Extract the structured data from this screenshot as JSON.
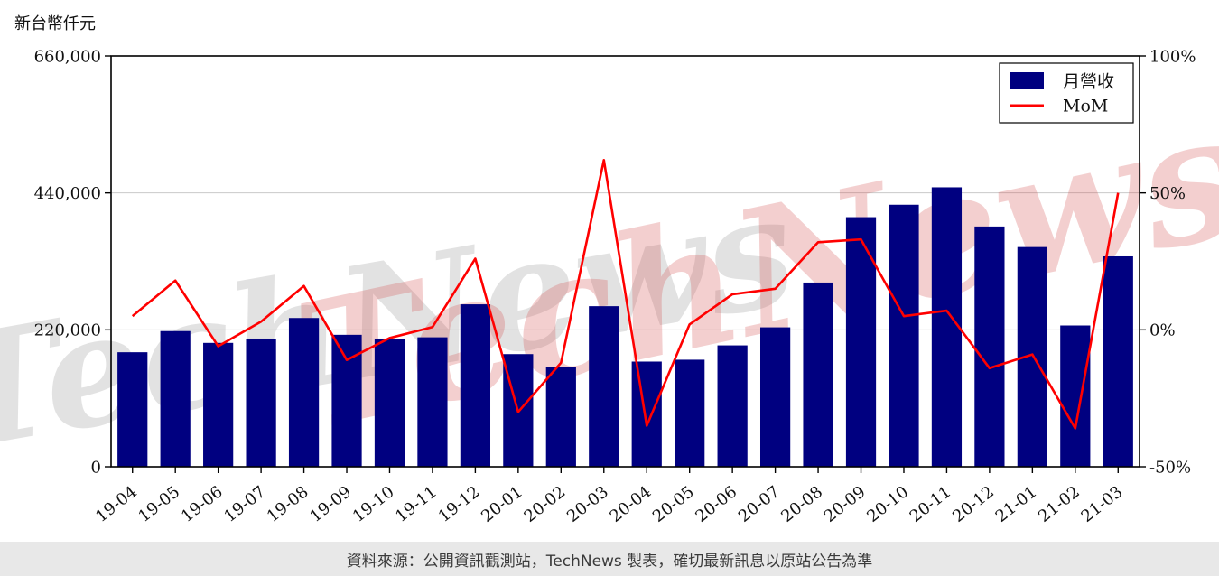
{
  "page": {
    "unit_label": "新台幣仟元",
    "watermark": "TechNews",
    "footer_text": "資料來源：公開資訊觀測站，TechNews 製表，確切最新訊息以原站公告為準"
  },
  "chart_data": {
    "type": "bar",
    "title": "",
    "categories": [
      "19-04",
      "19-05",
      "19-06",
      "19-07",
      "19-08",
      "19-09",
      "19-10",
      "19-11",
      "19-12",
      "20-01",
      "20-02",
      "20-03",
      "20-04",
      "20-05",
      "20-06",
      "20-07",
      "20-08",
      "20-09",
      "20-10",
      "20-11",
      "20-12",
      "21-01",
      "21-02",
      "21-03"
    ],
    "series": [
      {
        "name": "月營收",
        "type": "bar",
        "axis": "left",
        "color": "#000080",
        "values": [
          184000,
          218000,
          199000,
          206000,
          239000,
          212000,
          206000,
          208000,
          261000,
          181000,
          160000,
          258000,
          169000,
          172000,
          195000,
          224000,
          296000,
          401000,
          421000,
          449000,
          386000,
          353000,
          227000,
          338000
        ]
      },
      {
        "name": "MoM",
        "type": "line",
        "axis": "right",
        "color": "#ff0000",
        "unit": "%",
        "values": [
          5,
          18,
          -6,
          3,
          16,
          -11,
          -3,
          1,
          26,
          -30,
          -12,
          62,
          -35,
          2,
          13,
          15,
          32,
          33,
          5,
          7,
          -14,
          -9,
          -36,
          50
        ]
      }
    ],
    "left_axis": {
      "label": "新台幣仟元",
      "min": 0,
      "max": 660000,
      "ticks": [
        0,
        220000,
        440000,
        660000
      ],
      "tick_labels": [
        "0",
        "220,000",
        "440,000",
        "660,000"
      ]
    },
    "right_axis": {
      "min": -50,
      "max": 100,
      "unit": "%",
      "ticks": [
        -50,
        0,
        50,
        100
      ],
      "tick_labels": [
        "-50%",
        "0%",
        "50%",
        "100%"
      ]
    },
    "legend": {
      "position": "top-right",
      "entries": [
        "月營收",
        "MoM"
      ]
    },
    "grid": true,
    "xlabel": "",
    "ylabel": "新台幣仟元"
  }
}
